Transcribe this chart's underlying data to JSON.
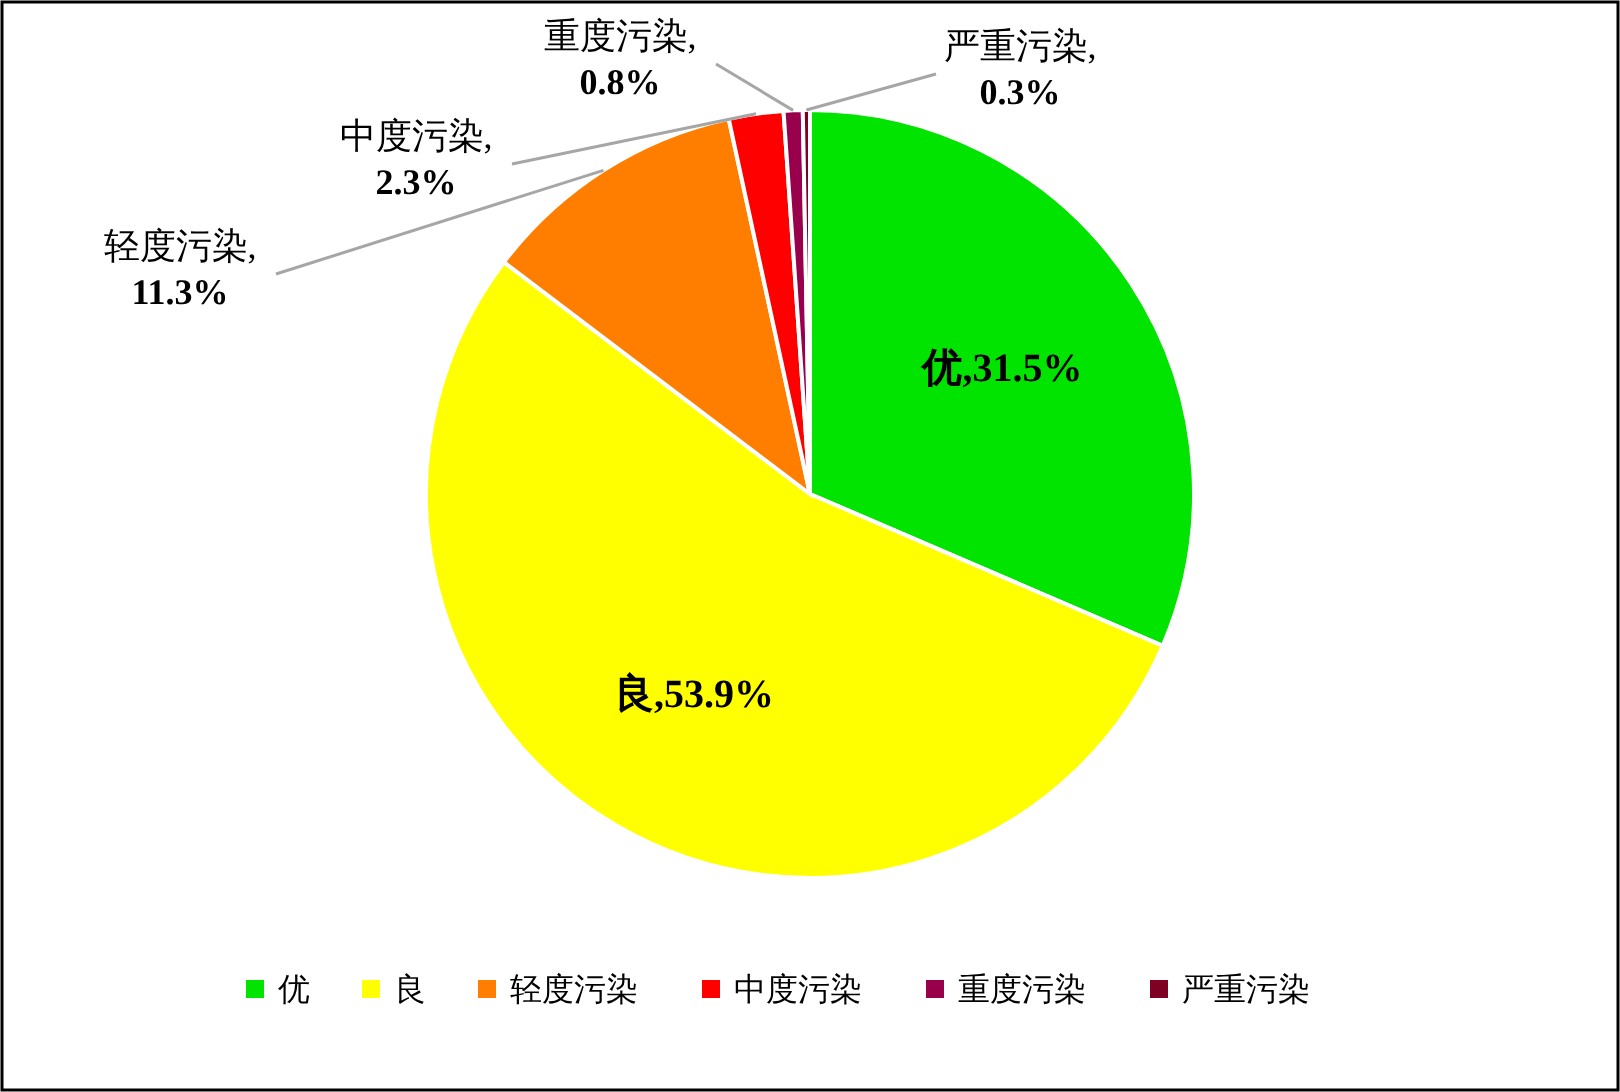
{
  "chart_data": {
    "type": "pie",
    "categories": [
      "优",
      "良",
      "轻度污染",
      "中度污染",
      "重度污染",
      "严重污染"
    ],
    "values": [
      31.5,
      53.9,
      11.3,
      2.3,
      0.8,
      0.3
    ],
    "colors": [
      "#00e400",
      "#ffff00",
      "#ff7e00",
      "#ff0000",
      "#99004c",
      "#7e0023"
    ],
    "value_labels": [
      "优,31.5%",
      "良,53.9%",
      "轻度污染,11.3%",
      "中度污染,2.3%",
      "重度污染,0.8%",
      "严重污染,0.3%"
    ],
    "legend": "bottom"
  }
}
